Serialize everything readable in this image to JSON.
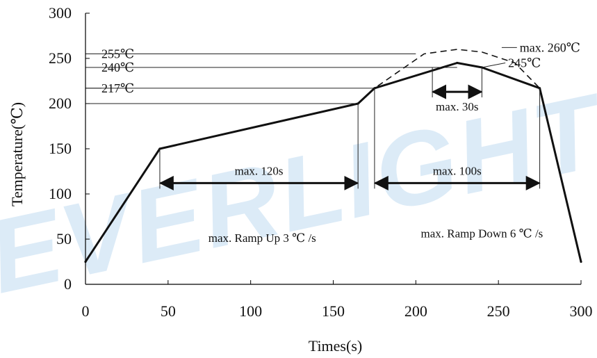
{
  "chart_data": {
    "type": "line",
    "title": "",
    "xlabel": "Times(s)",
    "ylabel": "Temperature(℃)",
    "xlim": [
      0,
      300
    ],
    "ylim": [
      0,
      300
    ],
    "xticks": [
      0,
      50,
      100,
      150,
      200,
      250,
      300
    ],
    "yticks": [
      0,
      50,
      100,
      150,
      200,
      250,
      300
    ],
    "grid": false,
    "watermark": "EVERLIGHT",
    "colors": {
      "profile": "#111111",
      "axis": "#000000",
      "watermark": "#dcebf7"
    },
    "series": [
      {
        "style": "solid",
        "x": [
          0,
          45,
          165,
          175,
          225,
          240,
          275,
          300
        ],
        "y": [
          25,
          150,
          200,
          217,
          245,
          240,
          217,
          25
        ]
      },
      {
        "style": "dashed",
        "x": [
          0,
          45,
          165,
          175,
          205,
          225,
          240,
          260,
          275,
          300
        ],
        "y": [
          25,
          150,
          200,
          217,
          255,
          260,
          257,
          245,
          217,
          25
        ]
      }
    ],
    "reference_lines": [
      {
        "label": "255℃",
        "y": 255,
        "x_end": 200
      },
      {
        "label": "240℃",
        "y": 240,
        "x_end": 225
      },
      {
        "label": "217℃",
        "y": 217,
        "x_end": 175
      },
      {
        "label": "",
        "y": 200,
        "x_end": 165
      }
    ],
    "peak_labels": [
      {
        "label": "max. 260℃",
        "x_from": 252,
        "y_from": 262,
        "x_to": 257,
        "y_to": 262
      },
      {
        "label": "245℃",
        "x_from": 240,
        "y_from": 240,
        "x_to": 250,
        "y_to": 245
      }
    ],
    "durations": [
      {
        "label": "max. 120s",
        "x_start": 45,
        "x_end": 165,
        "y": 112
      },
      {
        "label": "max. 100s",
        "x_start": 175,
        "x_end": 275,
        "y": 112
      },
      {
        "label": "max. 30s",
        "x_start": 210,
        "x_end": 240,
        "y": 213
      }
    ],
    "annotations": [
      {
        "text": "max. Ramp Up 3 ℃ /s",
        "x": 107,
        "y": 47
      },
      {
        "text": "max. Ramp Down 6 ℃ /s",
        "x": 240,
        "y": 52
      }
    ]
  }
}
